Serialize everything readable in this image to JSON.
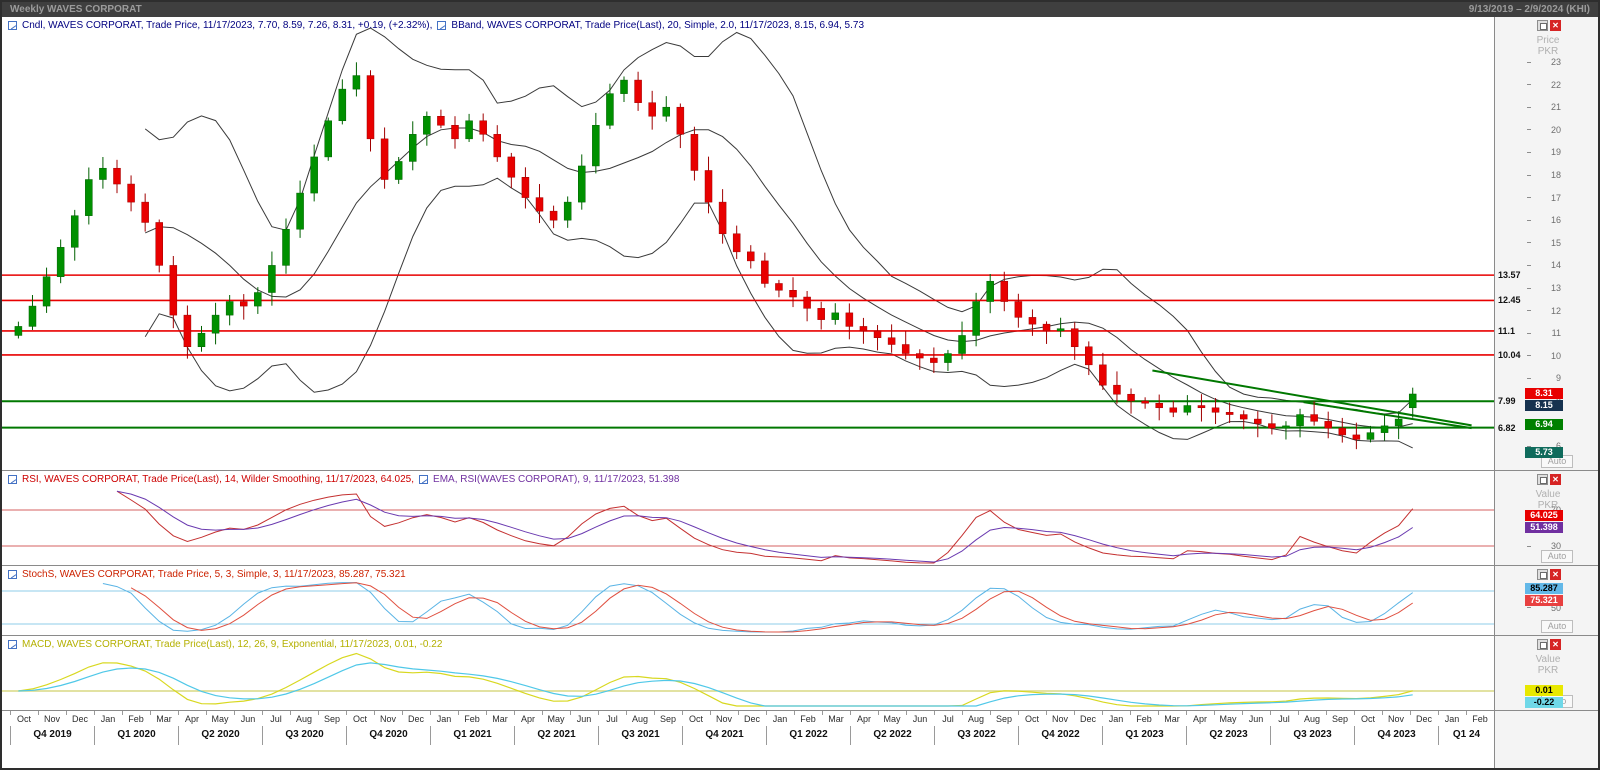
{
  "titlebar": {
    "title": "Weekly WAVES CORPORAT",
    "date_range": "9/13/2019 – 2/9/2024 (KHI)"
  },
  "axis": {
    "price_title_line1": "Price",
    "price_title_line2": "PKR",
    "value_title_line1": "Value",
    "value_title_line2": "PKR",
    "auto_label": "Auto"
  },
  "panels": {
    "main": {
      "legend_cndl": "Cndl, WAVES CORPORAT, Trade Price, 11/17/2023, 7.70, 8.59, 7.26, 8.31, +0.19, (+2.32%),",
      "legend_bband": "BBand, WAVES CORPORAT, Trade Price(Last), 20, Simple, 2.0, 11/17/2023, 8.15, 6.94, 5.73",
      "price_ticks": [
        23,
        22,
        21,
        20,
        19,
        18,
        17,
        16,
        15,
        14,
        13,
        12,
        11,
        10,
        9,
        8,
        7,
        6
      ],
      "level_labels": [
        "13.57",
        "12.45",
        "11.1",
        "10.04",
        "7.99",
        "6.82"
      ],
      "badges": [
        {
          "label": "8.31",
          "value": 8.31,
          "bg": "#e80000",
          "fg": "#ffffff"
        },
        {
          "label": "8.15",
          "value": 8.15,
          "bg": "#16324f",
          "fg": "#ffffff"
        },
        {
          "label": "6.94",
          "value": 6.94,
          "bg": "#008000",
          "fg": "#ffffff"
        },
        {
          "label": "5.73",
          "value": 5.73,
          "bg": "#0f6b5c",
          "fg": "#ffffff"
        }
      ]
    },
    "rsi": {
      "legend_rsi": "RSI, WAVES CORPORAT, Trade Price(Last), 14, Wilder Smoothing, 11/17/2023, 64.025,",
      "legend_ema": "EMA, RSI(WAVES CORPORAT), 9, 11/17/2023, 51.398",
      "ticks": [
        70,
        30
      ],
      "badges": [
        {
          "label": "64.025",
          "value": 64.025,
          "bg": "#e80000",
          "fg": "#ffffff"
        },
        {
          "label": "51.398",
          "value": 51.398,
          "bg": "#7030a0",
          "fg": "#ffffff"
        }
      ]
    },
    "stoch": {
      "legend": "StochS, WAVES CORPORAT, Trade Price, 5, 3, Simple, 3, 11/17/2023, 85.287, 75.321",
      "ticks": [
        50
      ],
      "badges": [
        {
          "label": "85.287",
          "value": 85.287,
          "bg": "#63b8e8",
          "fg": "#000000"
        },
        {
          "label": "75.321",
          "value": 75.321,
          "bg": "#e84040",
          "fg": "#ffffff"
        }
      ]
    },
    "macd": {
      "legend": "MACD, WAVES CORPORAT, Trade Price(Last), 12, 26, 9, Exponential, 11/17/2023, 0.01, -0.22",
      "ticks": [],
      "badges": [
        {
          "label": "0.01",
          "value": 0.01,
          "bg": "#e8e800",
          "fg": "#000000"
        },
        {
          "label": "-0.22",
          "value": -0.22,
          "bg": "#70d8e8",
          "fg": "#000000"
        }
      ]
    }
  },
  "xaxis": {
    "months": [
      "Oct",
      "Nov",
      "Dec",
      "Jan",
      "Feb",
      "Mar",
      "Apr",
      "May",
      "Jun",
      "Jul",
      "Aug",
      "Sep",
      "Oct",
      "Nov",
      "Dec",
      "Jan",
      "Feb",
      "Mar",
      "Apr",
      "May",
      "Jun",
      "Jul",
      "Aug",
      "Sep",
      "Oct",
      "Nov",
      "Dec",
      "Jan",
      "Feb",
      "Mar",
      "Apr",
      "May",
      "Jun",
      "Jul",
      "Aug",
      "Sep",
      "Oct",
      "Nov",
      "Dec",
      "Jan",
      "Feb",
      "Mar",
      "Apr",
      "May",
      "Jun",
      "Jul",
      "Aug",
      "Sep",
      "Oct",
      "Nov",
      "Dec",
      "Jan",
      "Feb"
    ],
    "quarters": [
      {
        "label": "Q4 2019",
        "span": 3
      },
      {
        "label": "Q1 2020",
        "span": 3
      },
      {
        "label": "Q2 2020",
        "span": 3
      },
      {
        "label": "Q3 2020",
        "span": 3
      },
      {
        "label": "Q4 2020",
        "span": 3
      },
      {
        "label": "Q1 2021",
        "span": 3
      },
      {
        "label": "Q2 2021",
        "span": 3
      },
      {
        "label": "Q3 2021",
        "span": 3
      },
      {
        "label": "Q4 2021",
        "span": 3
      },
      {
        "label": "Q1 2022",
        "span": 3
      },
      {
        "label": "Q2 2022",
        "span": 3
      },
      {
        "label": "Q3 2022",
        "span": 3
      },
      {
        "label": "Q4 2022",
        "span": 3
      },
      {
        "label": "Q1 2023",
        "span": 3
      },
      {
        "label": "Q2 2023",
        "span": 3
      },
      {
        "label": "Q3 2023",
        "span": 3
      },
      {
        "label": "Q4 2023",
        "span": 3
      },
      {
        "label": "Q1 24",
        "span": 2
      }
    ]
  },
  "colors": {
    "up_candle": "#009000",
    "up_stroke": "#006000",
    "down_candle": "#e80000",
    "down_stroke": "#a00000",
    "bband": "#3a3a3a",
    "resistance": "#e80000",
    "support": "#007800",
    "trendline": "#007800",
    "rsi_line": "#c43030",
    "rsi_ema": "#6a3ab0",
    "rsi_levels": "#d46060",
    "stoch_k": "#5ab4e5",
    "stoch_d": "#e05040",
    "stoch_levels": "#8fcdea",
    "macd_line": "#d8d820",
    "macd_signal": "#50c8e8",
    "macd_zero": "#d8d884"
  },
  "chart_data": {
    "type": "candlestick",
    "title": "Weekly WAVES CORPORAT, Trade Price",
    "x_range": [
      "Oct 2019",
      "Feb 2024"
    ],
    "y_axis": {
      "title": "Price PKR",
      "min": 5.5,
      "max": 23.8
    },
    "price": {
      "sampling": "biweekly closes, Oct 2019 - Nov 17 2023, values read from chart",
      "closes_biweekly": [
        11.3,
        12.2,
        13.5,
        14.8,
        16.2,
        17.8,
        18.3,
        17.6,
        16.8,
        15.9,
        14.0,
        11.8,
        10.4,
        11.0,
        11.8,
        12.4,
        12.2,
        12.8,
        14.0,
        15.6,
        17.2,
        18.8,
        20.4,
        21.8,
        22.4,
        19.6,
        17.8,
        18.6,
        19.8,
        20.6,
        20.2,
        19.6,
        20.4,
        19.8,
        18.8,
        17.9,
        17.0,
        16.4,
        16.0,
        16.8,
        18.4,
        20.2,
        21.6,
        22.2,
        21.2,
        20.6,
        21.0,
        19.8,
        18.2,
        16.8,
        15.4,
        14.6,
        14.2,
        13.2,
        12.9,
        12.6,
        12.1,
        11.6,
        11.9,
        11.3,
        11.1,
        10.8,
        10.5,
        10.1,
        9.9,
        9.7,
        10.1,
        10.9,
        12.4,
        13.3,
        12.4,
        11.7,
        11.4,
        11.1,
        11.2,
        10.4,
        9.6,
        8.7,
        8.3,
        8.0,
        7.9,
        7.7,
        7.5,
        7.8,
        7.7,
        7.5,
        7.4,
        7.2,
        7.0,
        6.8,
        6.9,
        7.4,
        7.1,
        6.8,
        6.5,
        6.3,
        6.6,
        6.9,
        7.2,
        8.31
      ],
      "last_bar": {
        "date": "11/17/2023",
        "open": 7.7,
        "high": 8.59,
        "low": 7.26,
        "close": 8.31,
        "change": "+0.19",
        "change_pct": "+2.32%"
      },
      "bollinger": {
        "period": 20,
        "type": "Simple",
        "stdev": 2.0,
        "last_upper": 8.15,
        "last_mid": 6.94,
        "last_lower": 5.73
      },
      "resistance_levels": [
        13.57,
        12.45,
        11.1,
        10.04
      ],
      "support_levels": [
        7.99,
        6.82
      ],
      "trendlines": [
        {
          "t1_months": 40.8,
          "p1": 9.35,
          "t2_months": 52.2,
          "p2": 6.92
        },
        {
          "t1_months": 46.2,
          "p1": 7.95,
          "t2_months": 52.2,
          "p2": 6.8
        }
      ]
    },
    "indicators": {
      "rsi": {
        "type": "line",
        "period": 14,
        "smoothing": "Wilder Smoothing",
        "last": 64.025,
        "ema_period": 9,
        "ema_last": 51.398,
        "levels": [
          70,
          30
        ],
        "range": [
          0,
          100
        ]
      },
      "stoch": {
        "type": "line",
        "k": 5,
        "slowing": 3,
        "ma": "Simple",
        "d": 3,
        "last_k": 85.287,
        "last_d": 75.321,
        "levels": [
          80,
          20
        ],
        "range": [
          0,
          100
        ]
      },
      "macd": {
        "type": "line",
        "fast": 12,
        "slow": 26,
        "signal": 9,
        "ma": "Exponential",
        "last_macd": 0.01,
        "last_signal": -0.22,
        "zero_line": 0
      }
    },
    "series_note": "indicator curves are computed from closes_biweekly"
  }
}
